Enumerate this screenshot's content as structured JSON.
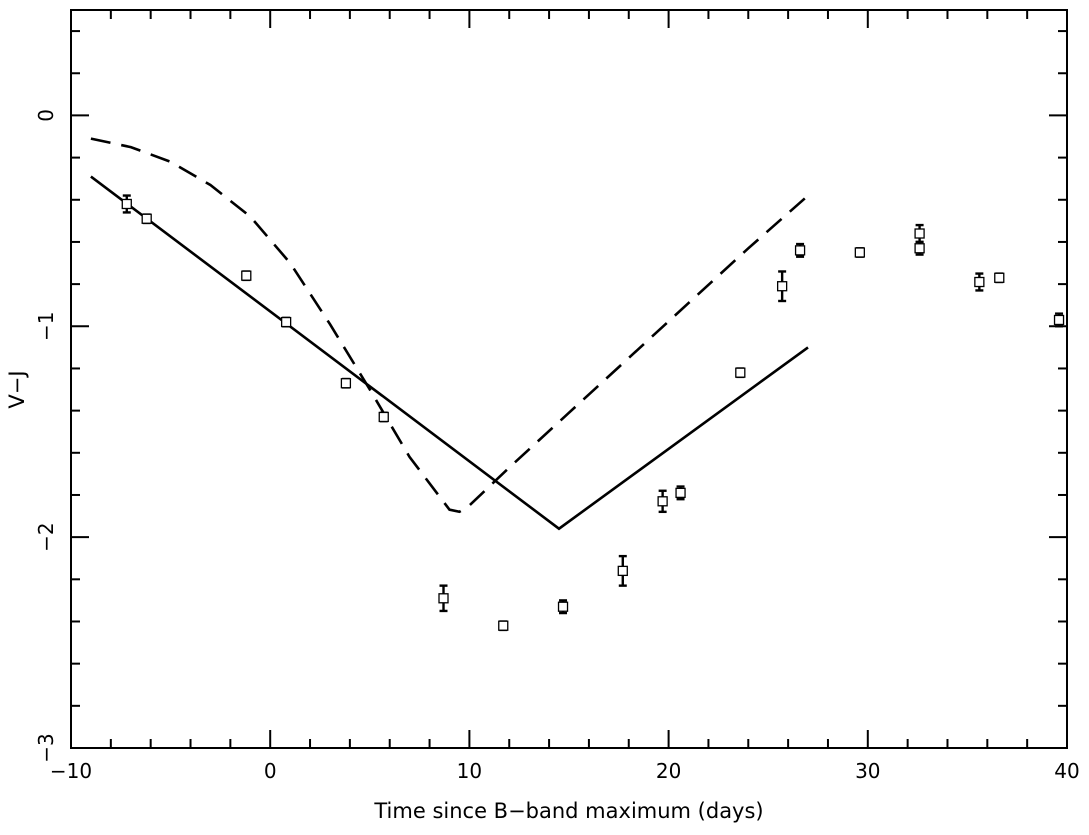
{
  "chart_data": {
    "type": "scatter",
    "xlabel": "Time since B−band maximum (days)",
    "ylabel": "V−J",
    "xlim": [
      -10,
      40
    ],
    "ylim": [
      -3,
      0.5
    ],
    "y_axis_inverted": true,
    "grid": false,
    "legend": "none",
    "x_ticks": [
      -10,
      0,
      10,
      20,
      30,
      40
    ],
    "x_tick_labels": [
      "−10",
      "0",
      "10",
      "20",
      "30",
      "40"
    ],
    "y_ticks": [
      0,
      -1,
      -2,
      -3
    ],
    "y_tick_labels": [
      "0",
      "−1",
      "−2",
      "−3"
    ],
    "points": [
      {
        "x": -7.2,
        "y": -0.42,
        "err": 0.04
      },
      {
        "x": -6.2,
        "y": -0.49,
        "err": 0.02
      },
      {
        "x": -1.2,
        "y": -0.76,
        "err": 0.02
      },
      {
        "x": 0.8,
        "y": -0.98,
        "err": 0.02
      },
      {
        "x": 3.8,
        "y": -1.27,
        "err": 0.02
      },
      {
        "x": 5.7,
        "y": -1.43,
        "err": 0.02
      },
      {
        "x": 8.7,
        "y": -2.29,
        "err": 0.06
      },
      {
        "x": 11.7,
        "y": -2.42,
        "err": 0.02
      },
      {
        "x": 14.7,
        "y": -2.33,
        "err": 0.03
      },
      {
        "x": 17.7,
        "y": -2.16,
        "err": 0.07
      },
      {
        "x": 19.7,
        "y": -1.83,
        "err": 0.05
      },
      {
        "x": 20.6,
        "y": -1.79,
        "err": 0.03
      },
      {
        "x": 23.6,
        "y": -1.22,
        "err": 0.02
      },
      {
        "x": 25.7,
        "y": -0.81,
        "err": 0.07
      },
      {
        "x": 26.6,
        "y": -0.64,
        "err": 0.03
      },
      {
        "x": 29.6,
        "y": -0.65,
        "err": 0.02
      },
      {
        "x": 32.6,
        "y": -0.56,
        "err": 0.04
      },
      {
        "x": 32.6,
        "y": -0.63,
        "err": 0.03
      },
      {
        "x": 35.6,
        "y": -0.79,
        "err": 0.04
      },
      {
        "x": 36.6,
        "y": -0.77,
        "err": 0.02
      },
      {
        "x": 39.6,
        "y": -0.97,
        "err": 0.03
      }
    ],
    "models": [
      {
        "style": "solid",
        "x": [
          -9,
          14.5,
          27
        ],
        "y": [
          -0.29,
          -1.96,
          -1.1
        ]
      },
      {
        "style": "dashed",
        "x": [
          -9,
          -7,
          -5,
          -3,
          -1,
          1,
          3,
          5,
          7,
          9,
          9.5,
          10,
          12,
          15,
          18,
          21,
          24,
          27
        ],
        "y": [
          -0.11,
          -0.15,
          -0.22,
          -0.33,
          -0.48,
          -0.7,
          -0.99,
          -1.3,
          -1.62,
          -1.87,
          -1.88,
          -1.85,
          -1.67,
          -1.41,
          -1.15,
          -0.89,
          -0.63,
          -0.38
        ]
      }
    ]
  }
}
